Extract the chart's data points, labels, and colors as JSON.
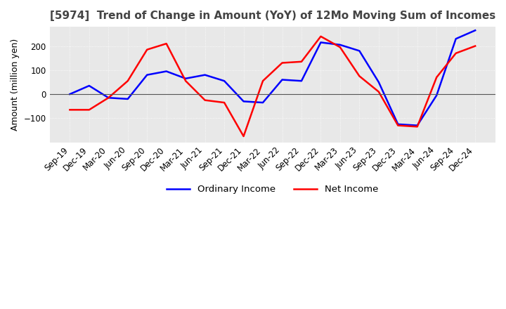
{
  "title": "[5974]  Trend of Change in Amount (YoY) of 12Mo Moving Sum of Incomes",
  "ylabel": "Amount (million yen)",
  "title_fontsize": 11,
  "label_fontsize": 9,
  "tick_fontsize": 8.5,
  "background_color": "#ffffff",
  "plot_bg_color": "#e8e8e8",
  "grid_color": "#ffffff",
  "x_labels": [
    "Sep-19",
    "Dec-19",
    "Mar-20",
    "Jun-20",
    "Sep-20",
    "Dec-20",
    "Mar-21",
    "Jun-21",
    "Sep-21",
    "Dec-21",
    "Mar-22",
    "Jun-22",
    "Sep-22",
    "Dec-22",
    "Mar-23",
    "Jun-23",
    "Sep-23",
    "Dec-23",
    "Mar-24",
    "Jun-24",
    "Sep-24",
    "Dec-24"
  ],
  "ordinary_income": [
    0,
    35,
    -15,
    -20,
    80,
    95,
    65,
    80,
    55,
    -30,
    -35,
    60,
    55,
    215,
    205,
    180,
    50,
    -125,
    -130,
    -5,
    230,
    265
  ],
  "net_income": [
    -65,
    -65,
    -15,
    55,
    185,
    210,
    55,
    -25,
    -35,
    -175,
    55,
    130,
    135,
    240,
    195,
    75,
    10,
    -130,
    -135,
    70,
    170,
    200
  ],
  "ordinary_color": "#0000ff",
  "net_color": "#ff0000",
  "line_width": 1.8,
  "ylim": [
    -200,
    280
  ],
  "yticks": [
    -100,
    0,
    100,
    200
  ],
  "legend_labels": [
    "Ordinary Income",
    "Net Income"
  ]
}
